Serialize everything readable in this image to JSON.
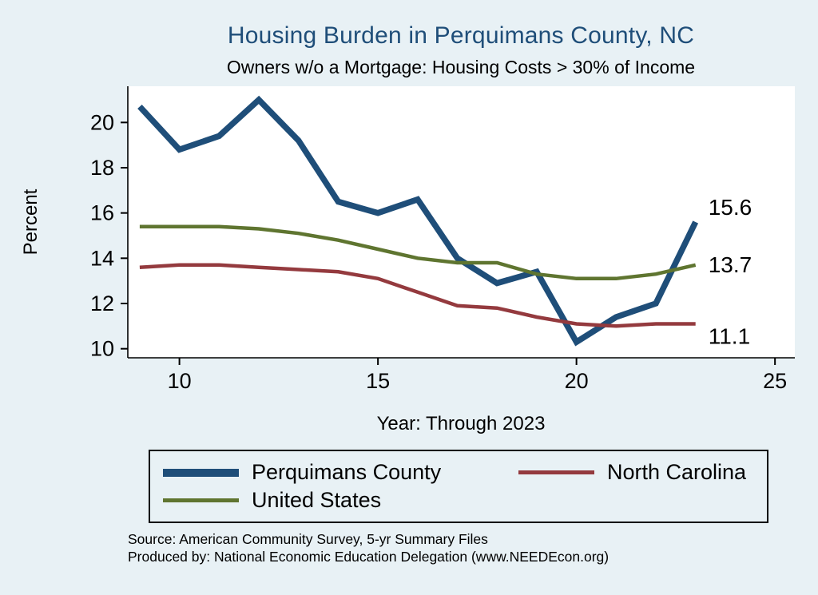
{
  "title": "Housing Burden in Perquimans County, NC",
  "subtitle": "Owners w/o a Mortgage: Housing Costs > 30% of Income",
  "chart_data": {
    "type": "line",
    "x": [
      9,
      10,
      11,
      12,
      13,
      14,
      15,
      16,
      17,
      18,
      19,
      20,
      21,
      22,
      23
    ],
    "x_years": [
      2009,
      2010,
      2011,
      2012,
      2013,
      2014,
      2015,
      2016,
      2017,
      2018,
      2019,
      2020,
      2021,
      2022,
      2023
    ],
    "series": [
      {
        "name": "Perquimans County",
        "color": "#1f4e79",
        "line_width": 7.5,
        "end_label": "15.6",
        "values": [
          20.7,
          18.8,
          19.4,
          21.0,
          19.2,
          16.5,
          16.0,
          16.6,
          14.0,
          12.9,
          13.4,
          10.3,
          11.4,
          12.0,
          15.6
        ]
      },
      {
        "name": "North Carolina",
        "color": "#943a3e",
        "line_width": 4.5,
        "end_label": "11.1",
        "values": [
          13.6,
          13.7,
          13.7,
          13.6,
          13.5,
          13.4,
          13.1,
          12.5,
          11.9,
          11.8,
          11.4,
          11.1,
          11.0,
          11.1,
          11.1
        ]
      },
      {
        "name": "United States",
        "color": "#5f7530",
        "line_width": 4.5,
        "end_label": "13.7",
        "values": [
          15.4,
          15.4,
          15.4,
          15.3,
          15.1,
          14.8,
          14.4,
          14.0,
          13.8,
          13.8,
          13.3,
          13.1,
          13.1,
          13.3,
          13.7
        ]
      }
    ],
    "xticks": [
      10,
      15,
      20,
      25
    ],
    "yticks": [
      10,
      12,
      14,
      16,
      18,
      20
    ],
    "xlim": [
      8.7,
      25.5
    ],
    "ylim": [
      9.6,
      21.6
    ],
    "xlabel": "Year: Through 2023",
    "ylabel": "Percent",
    "grid": false,
    "legend_position": "bottom"
  },
  "notes": {
    "source": "Source: American Community Survey, 5-yr Summary Files",
    "producer": "Produced by: National Economic Education Delegation (www.NEEDEcon.org)"
  },
  "colors": {
    "background": "#e8f1f5",
    "plot_background": "#ffffff",
    "title": "#1f4e79",
    "axis": "#000000"
  }
}
